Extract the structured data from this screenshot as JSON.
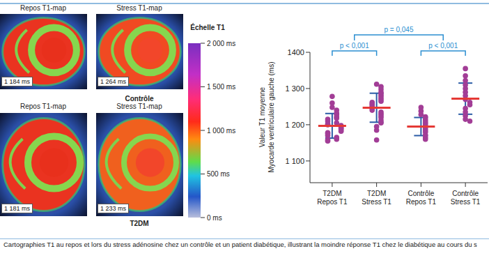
{
  "chart_data": {
    "type": "scatter",
    "categories": [
      "T2DM Repos T1",
      "T2DM Stress T1",
      "Contrôle Repos T1",
      "Contrôle Stress T1"
    ],
    "values": [
      [
        1278,
        1260,
        1248,
        1240,
        1232,
        1228,
        1222,
        1218,
        1215,
        1210,
        1205,
        1202,
        1200,
        1198,
        1195,
        1192,
        1190,
        1188,
        1185,
        1182,
        1178,
        1175,
        1170,
        1165,
        1160,
        1158,
        1155
      ],
      [
        1312,
        1305,
        1298,
        1290,
        1285,
        1280,
        1275,
        1270,
        1265,
        1262,
        1258,
        1255,
        1250,
        1248,
        1245,
        1240,
        1235,
        1230,
        1225,
        1220,
        1212,
        1205,
        1195,
        1185,
        1158
      ],
      [
        1248,
        1238,
        1228,
        1222,
        1215,
        1210,
        1205,
        1200,
        1195,
        1190,
        1185,
        1180,
        1172,
        1165,
        1160
      ],
      [
        1355,
        1335,
        1322,
        1310,
        1300,
        1290,
        1280,
        1270,
        1262,
        1255,
        1245,
        1235,
        1225,
        1215,
        1210
      ]
    ],
    "means": [
      1197,
      1247,
      1195,
      1272
    ],
    "sd": [
      34,
      40,
      25,
      43
    ],
    "color": "#a23d96",
    "y_label": [
      "Valeur T1 moyenne",
      "Myocarde ventriculaire gauche (ms)"
    ],
    "ylim": [
      1040,
      1400
    ],
    "yticks": [
      {
        "value": 1100,
        "label": "1 100"
      },
      {
        "value": 1200,
        "label": "1 200"
      },
      {
        "value": 1300,
        "label": "1 300"
      },
      1400
    ],
    "grid": false,
    "annotations": [
      {
        "text": "p < 0,001",
        "groups": [
          [
            "T2DM Repos T1"
          ],
          [
            "T2DM Stress T1"
          ]
        ]
      },
      {
        "text": "p < 0,001",
        "groups": [
          [
            "Contrôle Repos T1"
          ],
          [
            "Contrôle Stress T1"
          ]
        ]
      },
      {
        "text": "p = 0,045",
        "groups": [
          [
            "T2DM Repos T1",
            "T2DM Stress T1"
          ],
          [
            "Contrôle Repos T1",
            "Contrôle Stress T1"
          ]
        ]
      }
    ]
  },
  "figure": {
    "column_labels": [
      "Repos T1-map",
      "Stress T1-map"
    ],
    "row_labels": [
      "Contrôle",
      "T2DM"
    ],
    "panels": [
      {
        "row": "Contrôle",
        "column": "Repos T1-map",
        "value": 1184,
        "label": "1 184 ms"
      },
      {
        "row": "Contrôle",
        "column": "Stress T1-map",
        "value": 1264,
        "label": "1 264 ms"
      },
      {
        "row": "T2DM",
        "column": "Repos T1-map",
        "value": 1181,
        "label": "1 181 ms"
      },
      {
        "row": "T2DM",
        "column": "Stress T1-map",
        "value": 1233,
        "label": "1 233 ms"
      }
    ],
    "colorbar": {
      "title": "Échelle T1",
      "range": [
        0,
        2000
      ],
      "ticks": [
        {
          "value": 2000,
          "label": "2 000 ms"
        },
        {
          "value": 1500,
          "label": "1 500 ms"
        },
        {
          "value": 1000,
          "label": "1 000 ms"
        },
        {
          "value": 500,
          "label": "500 ms"
        },
        {
          "value": 0,
          "label": "0 ms"
        }
      ]
    },
    "caption": "Cartographies T1 au repos et lors du stress adénosine chez un contrôle et un patient diabétique, illustrant la moindre réponse T1 chez le diabétique au cours du s"
  }
}
